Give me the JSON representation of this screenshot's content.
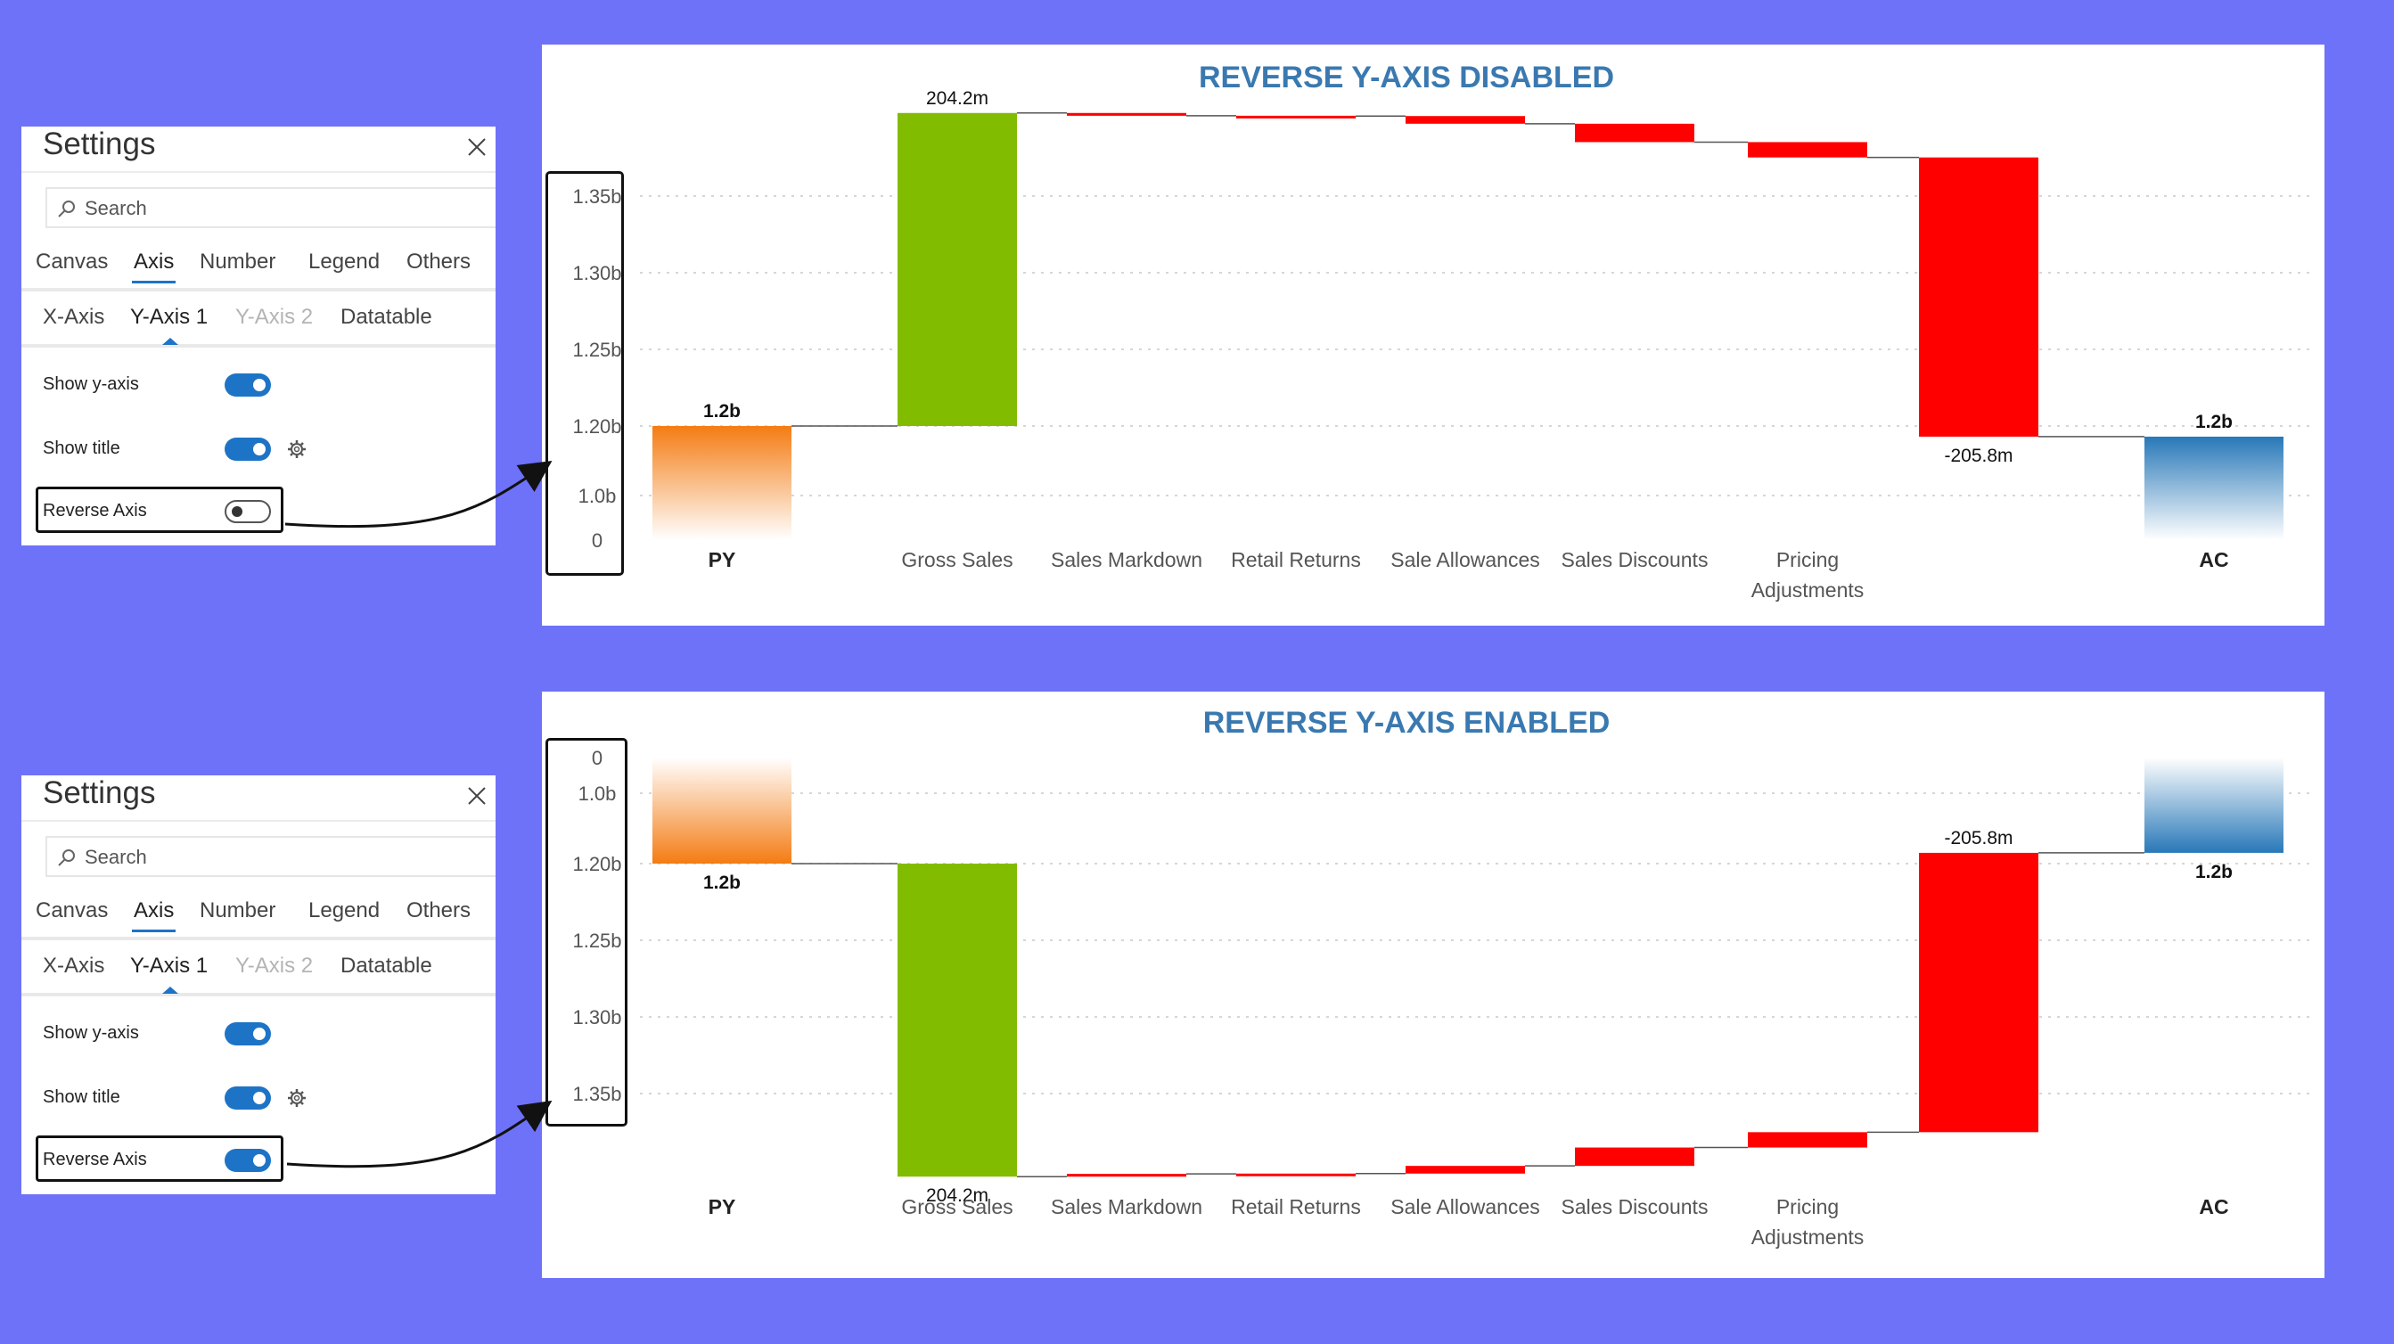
{
  "settings_panels": [
    {
      "title": "Settings",
      "search_placeholder": "Search",
      "tabs": [
        "Canvas",
        "Axis",
        "Number",
        "Legend",
        "Others"
      ],
      "active_tab": "Axis",
      "subtabs": [
        "X-Axis",
        "Y-Axis 1",
        "Y-Axis 2",
        "Datatable"
      ],
      "active_subtab": "Y-Axis 1",
      "disabled_subtab": "Y-Axis 2",
      "options": {
        "show_y_axis": {
          "label": "Show y-axis",
          "on": true
        },
        "show_title": {
          "label": "Show title",
          "on": true
        },
        "reverse_axis": {
          "label": "Reverse Axis",
          "on": false
        }
      }
    },
    {
      "title": "Settings",
      "search_placeholder": "Search",
      "tabs": [
        "Canvas",
        "Axis",
        "Number",
        "Legend",
        "Others"
      ],
      "active_tab": "Axis",
      "subtabs": [
        "X-Axis",
        "Y-Axis 1",
        "Y-Axis 2",
        "Datatable"
      ],
      "active_subtab": "Y-Axis 1",
      "disabled_subtab": "Y-Axis 2",
      "options": {
        "show_y_axis": {
          "label": "Show y-axis",
          "on": true
        },
        "show_title": {
          "label": "Show title",
          "on": true
        },
        "reverse_axis": {
          "label": "Reverse Axis",
          "on": true
        }
      }
    }
  ],
  "chart_data": [
    {
      "type": "bar",
      "subtype": "waterfall",
      "title": "REVERSE Y-AXIS DISABLED",
      "reversed": false,
      "y_ticks": [
        "0",
        "1.0b",
        "1.20b",
        "1.25b",
        "1.30b",
        "1.35b"
      ],
      "categories": [
        "PY",
        "Gross Sales",
        "Sales Markdown",
        "Retail Returns",
        "Sale Allowances",
        "Sales Discounts",
        "Pricing Adjustments",
        "",
        "AC"
      ],
      "category_bold": [
        true,
        false,
        false,
        false,
        false,
        false,
        false,
        false,
        true
      ],
      "bars": [
        {
          "label": "1.2b",
          "kind": "total",
          "color": "#f47c13"
        },
        {
          "label": "204.2m",
          "kind": "increase",
          "color": "#82bc00"
        },
        {
          "label": "",
          "kind": "decrease",
          "color": "#ff0000"
        },
        {
          "label": "",
          "kind": "decrease",
          "color": "#ff0000"
        },
        {
          "label": "",
          "kind": "decrease",
          "color": "#ff0000"
        },
        {
          "label": "",
          "kind": "decrease",
          "color": "#ff0000"
        },
        {
          "label": "",
          "kind": "decrease",
          "color": "#ff0000"
        },
        {
          "label": "-205.8m",
          "kind": "decrease",
          "color": "#ff0000"
        },
        {
          "label": "1.2b",
          "kind": "total",
          "color": "#2878b8"
        }
      ],
      "values_billions": [
        [
          0,
          1.2
        ],
        [
          1.2,
          1.4042
        ],
        [
          1.4042,
          1.4024
        ],
        [
          1.4024,
          1.4022
        ],
        [
          1.4022,
          1.3972
        ],
        [
          1.3972,
          1.3852
        ],
        [
          1.3852,
          1.3752
        ],
        [
          1.3752,
          1.1694
        ],
        [
          0,
          1.1694
        ]
      ]
    },
    {
      "type": "bar",
      "subtype": "waterfall",
      "title": "REVERSE Y-AXIS ENABLED",
      "reversed": true,
      "y_ticks": [
        "0",
        "1.0b",
        "1.20b",
        "1.25b",
        "1.30b",
        "1.35b"
      ],
      "categories": [
        "PY",
        "Gross Sales",
        "Sales Markdown",
        "Retail Returns",
        "Sale Allowances",
        "Sales Discounts",
        "Pricing Adjustments",
        "",
        "AC"
      ],
      "category_bold": [
        true,
        false,
        false,
        false,
        false,
        false,
        false,
        false,
        true
      ],
      "bars": [
        {
          "label": "1.2b",
          "kind": "total",
          "color": "#f47c13"
        },
        {
          "label": "204.2m",
          "kind": "increase",
          "color": "#82bc00"
        },
        {
          "label": "",
          "kind": "decrease",
          "color": "#ff0000"
        },
        {
          "label": "",
          "kind": "decrease",
          "color": "#ff0000"
        },
        {
          "label": "",
          "kind": "decrease",
          "color": "#ff0000"
        },
        {
          "label": "",
          "kind": "decrease",
          "color": "#ff0000"
        },
        {
          "label": "",
          "kind": "decrease",
          "color": "#ff0000"
        },
        {
          "label": "-205.8m",
          "kind": "decrease",
          "color": "#ff0000"
        },
        {
          "label": "1.2b",
          "kind": "total",
          "color": "#2878b8"
        }
      ],
      "values_billions": [
        [
          0,
          1.2
        ],
        [
          1.2,
          1.4042
        ],
        [
          1.4042,
          1.4024
        ],
        [
          1.4024,
          1.4022
        ],
        [
          1.4022,
          1.3972
        ],
        [
          1.3972,
          1.3852
        ],
        [
          1.3852,
          1.3752
        ],
        [
          1.3752,
          1.1694
        ],
        [
          0,
          1.1694
        ]
      ]
    }
  ],
  "colors": {
    "background": "#6e72f8",
    "title": "#3a79b0",
    "toggle_on": "#1d74c6"
  }
}
